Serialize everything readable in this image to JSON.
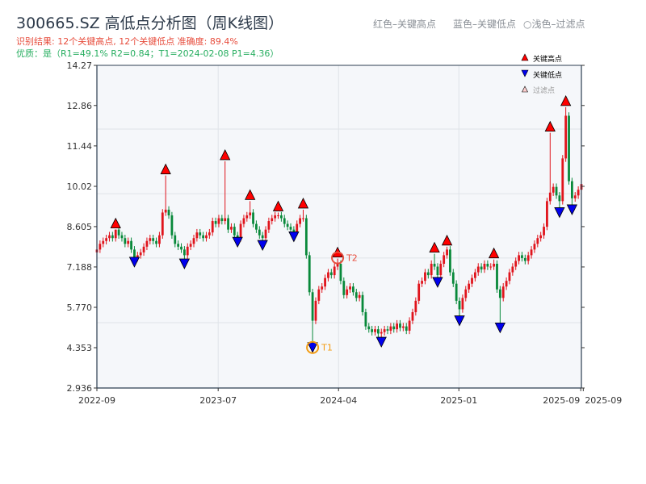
{
  "header": {
    "title": "300665.SZ 高低点分析图（周K线图）",
    "result_line": "识别结果: 12个关键高点, 12个关键低点  准确度: 89.4%",
    "quality_line": "优质：是（R1=49.1%  R2=0.84；T1=2024-02-08 P1=4.36）",
    "legend_red": "红色–关键高点",
    "legend_blue": "蓝色–关键低点",
    "legend_light": "○浅色–过滤点"
  },
  "colors": {
    "up": "#e0141c",
    "down": "#08893a",
    "high_marker": "#ff0000",
    "low_marker": "#0000ee",
    "t1": "#f39c12",
    "t2": "#e74c3c",
    "plot_bg": "#f5f7fa"
  },
  "chart_data": {
    "type": "candlestick",
    "title": "300665.SZ 高低点分析图（周K线图）",
    "x_unit": "week index",
    "ylim": [
      2.936,
      14.27
    ],
    "y_ticks": [
      "14.27",
      "12.86",
      "11.44",
      "10.02",
      "8.605",
      "7.188",
      "5.770",
      "4.353",
      "2.936"
    ],
    "y_tick_values": [
      14.27,
      12.86,
      11.44,
      10.02,
      8.605,
      7.188,
      5.77,
      4.353,
      2.936
    ],
    "grid_y": [
      12.03,
      9.76,
      7.5,
      5.23
    ],
    "x_ticks": [
      {
        "label": "2022-09",
        "i": 0
      },
      {
        "label": "2023-07",
        "i": 38.8
      },
      {
        "label": "2024-04",
        "i": 77.3
      },
      {
        "label": "2025-01",
        "i": 115.8
      },
      {
        "label": "2025-09",
        "i": 154.8
      },
      {
        "label": "2025-09",
        "i": 155.6
      }
    ],
    "closes": [
      7.8,
      8.0,
      8.1,
      8.2,
      8.3,
      8.2,
      8.5,
      8.3,
      8.2,
      8.0,
      8.1,
      7.8,
      7.5,
      7.6,
      7.7,
      7.9,
      8.1,
      8.2,
      8.1,
      8.0,
      8.3,
      9.1,
      9.2,
      9.0,
      8.3,
      8.0,
      7.9,
      7.8,
      7.6,
      7.9,
      8.0,
      8.2,
      8.4,
      8.3,
      8.2,
      8.3,
      8.4,
      8.8,
      8.7,
      8.9,
      8.8,
      8.9,
      8.5,
      8.6,
      8.3,
      8.2,
      8.7,
      8.9,
      9.0,
      9.1,
      8.7,
      8.5,
      8.3,
      8.2,
      8.5,
      8.8,
      8.9,
      9.0,
      9.0,
      8.9,
      8.7,
      8.6,
      8.5,
      8.4,
      8.7,
      8.9,
      8.9,
      7.6,
      6.3,
      5.3,
      6.0,
      6.4,
      6.5,
      6.8,
      7.0,
      6.9,
      7.2,
      7.3,
      6.7,
      6.2,
      6.4,
      6.5,
      6.3,
      6.1,
      6.2,
      5.6,
      5.1,
      5.0,
      4.9,
      5.0,
      4.85,
      4.9,
      5.0,
      4.95,
      5.1,
      5.0,
      5.2,
      5.05,
      5.1,
      4.95,
      5.3,
      5.6,
      6.0,
      6.6,
      6.7,
      7.0,
      6.9,
      7.3,
      7.2,
      6.9,
      7.3,
      7.6,
      7.8,
      7.0,
      6.6,
      6.0,
      5.7,
      6.1,
      6.4,
      6.6,
      6.8,
      7.0,
      7.2,
      7.1,
      7.3,
      7.2,
      7.2,
      7.3,
      6.4,
      6.1,
      6.5,
      6.7,
      7.0,
      7.2,
      7.4,
      7.6,
      7.5,
      7.4,
      7.6,
      7.8,
      8.0,
      8.2,
      8.3,
      8.6,
      9.5,
      9.8,
      10.0,
      9.7,
      9.5,
      11.0,
      12.5,
      10.2,
      9.6,
      9.7,
      9.9,
      10.1
    ],
    "key_highs": [
      {
        "i": 6,
        "p": 8.5
      },
      {
        "i": 22,
        "p": 10.4
      },
      {
        "i": 41,
        "p": 10.9
      },
      {
        "i": 49,
        "p": 9.5
      },
      {
        "i": 58,
        "p": 9.1
      },
      {
        "i": 66,
        "p": 9.2
      },
      {
        "i": 77,
        "p": 7.48
      },
      {
        "i": 108,
        "p": 7.65
      },
      {
        "i": 112,
        "p": 7.9
      },
      {
        "i": 127,
        "p": 7.45
      },
      {
        "i": 145,
        "p": 11.9
      },
      {
        "i": 150,
        "p": 12.8
      }
    ],
    "key_lows": [
      {
        "i": 12,
        "p": 7.36
      },
      {
        "i": 28,
        "p": 7.3
      },
      {
        "i": 45,
        "p": 8.06
      },
      {
        "i": 53,
        "p": 7.95
      },
      {
        "i": 63,
        "p": 8.25
      },
      {
        "i": 69,
        "p": 4.36
      },
      {
        "i": 91,
        "p": 4.55
      },
      {
        "i": 109,
        "p": 6.65
      },
      {
        "i": 116,
        "p": 5.3
      },
      {
        "i": 129,
        "p": 5.05
      },
      {
        "i": 148,
        "p": 9.1
      },
      {
        "i": 152,
        "p": 9.2
      }
    ],
    "annotations": [
      {
        "label": "T1",
        "i": 69,
        "p": 4.36
      },
      {
        "label": "T2",
        "i": 77,
        "p": 7.48
      }
    ],
    "legend": {
      "position": "top-right",
      "items": [
        "关键高点",
        "关键低点",
        "过滤点"
      ]
    }
  }
}
